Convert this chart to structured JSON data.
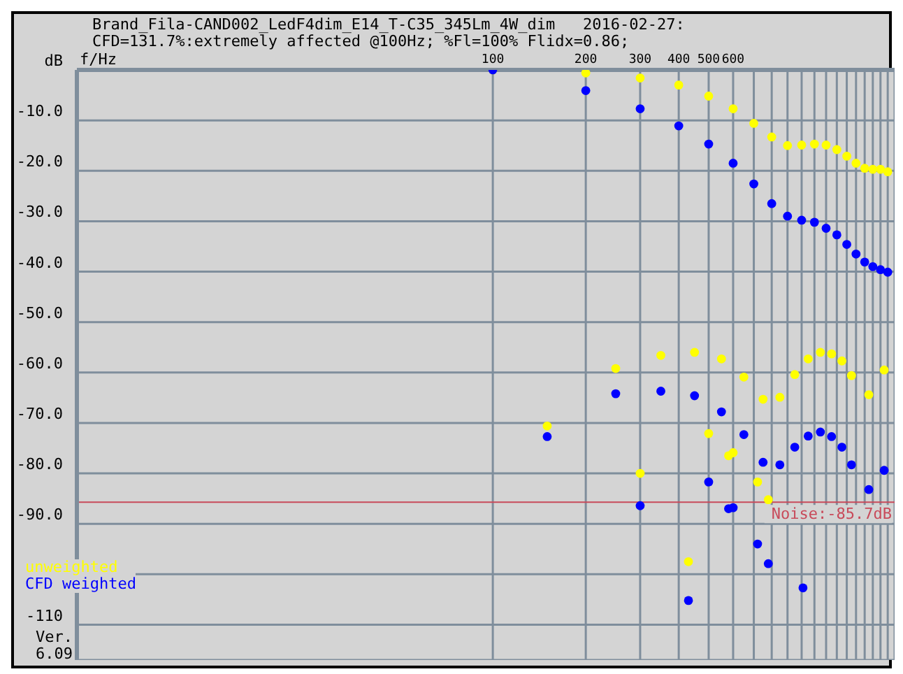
{
  "chart_data": {
    "type": "scatter",
    "title": "Brand_Fila-CAND002_LedF4dim_E14_T-C35_345Lm_4W_dim   2016-02-27:",
    "subtitle": "CFD=131.7%:extremely affected @100Hz; %Fl=100% Flidx=0.86;",
    "xlabel": "f/Hz",
    "log": "x",
    "xlim": [
      4.5,
      2000
    ],
    "xticks": [
      100,
      200,
      300,
      400,
      500,
      600,
      {
        "value": 700,
        "label": null
      },
      {
        "value": 800,
        "label": null
      },
      {
        "value": 900,
        "label": null
      },
      {
        "value": 1000,
        "label": null
      },
      {
        "value": 1100,
        "label": null
      },
      {
        "value": 1200,
        "label": null
      },
      {
        "value": 1300,
        "label": null
      },
      {
        "value": 1400,
        "label": null
      },
      {
        "value": 1500,
        "label": null
      },
      {
        "value": 1600,
        "label": null
      },
      {
        "value": 1700,
        "label": null
      },
      {
        "value": 1800,
        "label": null
      },
      {
        "value": 1900,
        "label": null
      },
      {
        "value": 2000,
        "label": null
      }
    ],
    "ylim": [
      -117,
      0
    ],
    "yticks": [
      {
        "value": 0,
        "label": "dB"
      },
      {
        "value": -10,
        "label": "-10.0"
      },
      {
        "value": -20,
        "label": "-20.0"
      },
      {
        "value": -30,
        "label": "-30.0"
      },
      {
        "value": -40,
        "label": "-40.0"
      },
      {
        "value": -50,
        "label": "-50.0"
      },
      {
        "value": -60,
        "label": "-60.0"
      },
      {
        "value": -70,
        "label": "-70.0"
      },
      {
        "value": -80,
        "label": "-80.0"
      },
      {
        "value": -90,
        "label": "-90.0"
      },
      {
        "value": -100,
        "label": null
      },
      {
        "value": -110,
        "label": "-110"
      }
    ],
    "grid": true,
    "legend": "bottom left",
    "marker": "circle",
    "ref_lines": [
      {
        "axis": "y",
        "value": -85.7,
        "label": "Noise:-85.7dB",
        "color": "#c84a5a"
      }
    ],
    "annotations": [
      "Ver. 6.09"
    ],
    "series": [
      {
        "name": "unweighted",
        "color": "#ffff00",
        "x": [
          100,
          200,
          300,
          400,
          500,
          600,
          700,
          800,
          900,
          1000,
          1100,
          1200,
          1300,
          1400,
          1500,
          1600,
          1700,
          1800,
          1900,
          150,
          250,
          350,
          450,
          550,
          650,
          750,
          850,
          950,
          1050,
          1150,
          1250,
          1350,
          1450,
          1650,
          1850,
          500,
          580,
          600,
          300,
          720,
          780,
          430
        ],
        "values": [
          0,
          -0.6,
          -1.6,
          -3.0,
          -5.2,
          -7.7,
          -10.6,
          -13.3,
          -15.0,
          -14.9,
          -14.7,
          -14.9,
          -15.8,
          -17.1,
          -18.5,
          -19.5,
          -19.7,
          -19.7,
          -20.2,
          -70.6,
          -59.2,
          -56.6,
          -56.0,
          -57.3,
          -60.9,
          -65.3,
          -64.9,
          -60.4,
          -57.3,
          -56.0,
          -56.3,
          -57.7,
          -60.6,
          -64.4,
          -59.5,
          -72.1,
          -76.5,
          -75.9,
          -80.0,
          -81.7,
          -85.2,
          -97.5
        ]
      },
      {
        "name": "CFD weighted",
        "color": "#0000ff",
        "x": [
          100,
          200,
          300,
          400,
          500,
          600,
          700,
          800,
          900,
          1000,
          1100,
          1200,
          1300,
          1400,
          1500,
          1600,
          1700,
          1800,
          1900,
          150,
          250,
          350,
          450,
          550,
          650,
          750,
          850,
          950,
          1050,
          1150,
          1250,
          1350,
          1450,
          1650,
          1850,
          500,
          580,
          600,
          300,
          720,
          780,
          430,
          1010
        ],
        "values": [
          0,
          -4.1,
          -7.7,
          -11.1,
          -14.7,
          -18.5,
          -22.6,
          -26.5,
          -29.0,
          -29.8,
          -30.2,
          -31.4,
          -32.7,
          -34.6,
          -36.5,
          -38.1,
          -39.0,
          -39.6,
          -40.1,
          -72.7,
          -64.2,
          -63.7,
          -64.6,
          -67.8,
          -72.3,
          -77.8,
          -78.3,
          -74.8,
          -72.6,
          -71.8,
          -72.7,
          -74.8,
          -78.3,
          -83.2,
          -79.4,
          -81.7,
          -87.0,
          -86.8,
          -86.4,
          -94.0,
          -97.9,
          -105.2,
          -102.7
        ]
      }
    ]
  }
}
